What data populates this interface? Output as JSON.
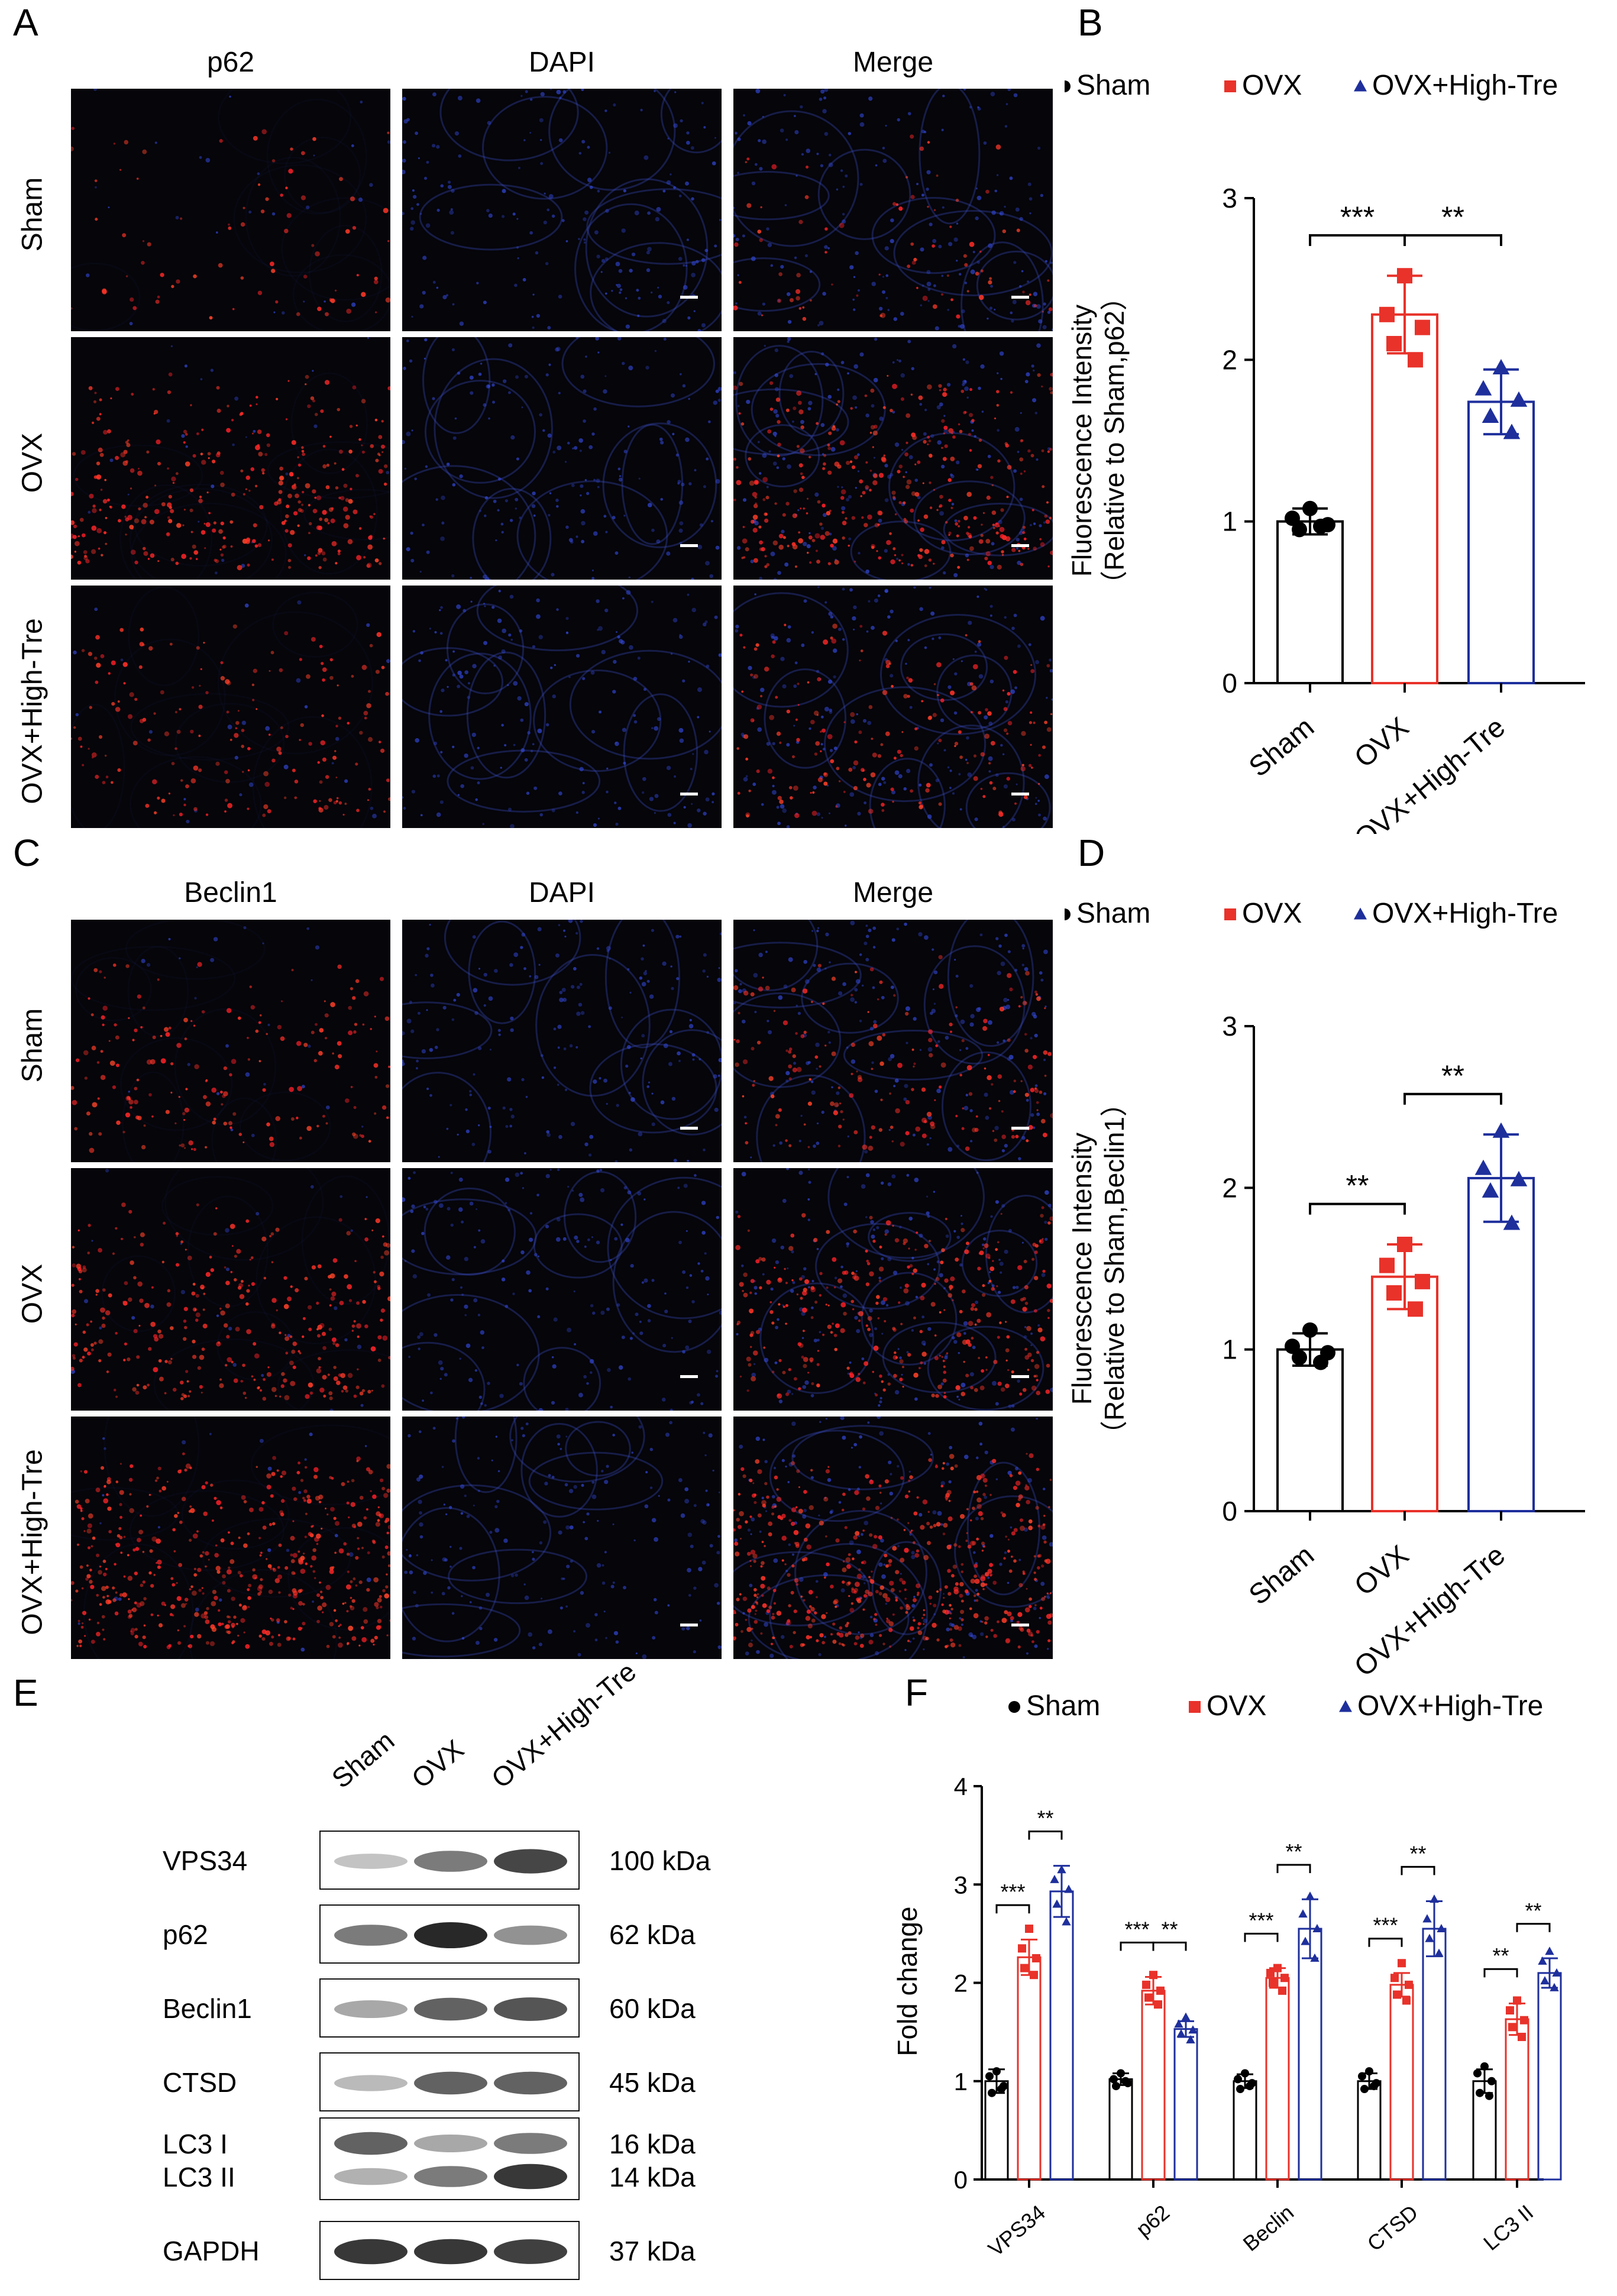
{
  "panel_letters": {
    "A": "A",
    "B": "B",
    "C": "C",
    "D": "D",
    "E": "E",
    "F": "F"
  },
  "if_rows": [
    "Sham",
    "OVX",
    "OVX+High-Tre"
  ],
  "panel_A": {
    "columns": [
      "p62",
      "DAPI",
      "Merge"
    ],
    "intensity": [
      0.15,
      0.65,
      0.35
    ]
  },
  "panel_C": {
    "columns": [
      "Beclin1",
      "DAPI",
      "Merge"
    ],
    "intensity": [
      0.35,
      0.6,
      0.95
    ]
  },
  "colors": {
    "sham": "#000000",
    "ovx": "#e8322a",
    "high": "#1e2f9c",
    "red_signal": "#ff2a2a",
    "blue_signal": "#2a3fd6"
  },
  "chart_data": [
    {
      "type": "bar",
      "panel": "B",
      "ylabel_line1": "Fluorescence Intensity",
      "ylabel_line2": "（Relative to Sham,p62）",
      "categories": [
        "Sham",
        "OVX",
        "OVX+High-Tre"
      ],
      "series": [
        {
          "name": "Sham",
          "value": 1.0,
          "sd": 0.08,
          "points": [
            1.08,
            1.02,
            0.98,
            0.95,
            0.97
          ]
        },
        {
          "name": "OVX",
          "value": 2.28,
          "sd": 0.24,
          "points": [
            2.52,
            2.28,
            2.2,
            2.1,
            2.0
          ]
        },
        {
          "name": "OVX+High-Tre",
          "value": 1.74,
          "sd": 0.2,
          "points": [
            1.95,
            1.82,
            1.75,
            1.65,
            1.55
          ]
        }
      ],
      "ylim": [
        0,
        3
      ],
      "yticks": [
        "0",
        "1",
        "2",
        "3"
      ],
      "legend": [
        "Sham",
        "OVX",
        "OVX+High-Tre"
      ],
      "significance": [
        {
          "from": 0,
          "to": 1,
          "label": "***"
        },
        {
          "from": 1,
          "to": 2,
          "label": "**"
        }
      ]
    },
    {
      "type": "bar",
      "panel": "D",
      "ylabel_line1": "Fluorescence Intensity",
      "ylabel_line2": "（Relative to Sham,Beclin1）",
      "categories": [
        "Sham",
        "OVX",
        "OVX+High-Tre"
      ],
      "series": [
        {
          "name": "Sham",
          "value": 1.0,
          "sd": 0.1,
          "points": [
            1.12,
            1.02,
            0.98,
            0.95,
            0.92
          ]
        },
        {
          "name": "OVX",
          "value": 1.45,
          "sd": 0.2,
          "points": [
            1.65,
            1.52,
            1.42,
            1.35,
            1.25
          ]
        },
        {
          "name": "OVX+High-Tre",
          "value": 2.06,
          "sd": 0.27,
          "points": [
            2.35,
            2.12,
            2.05,
            1.98,
            1.78
          ]
        }
      ],
      "ylim": [
        0,
        3
      ],
      "yticks": [
        "0",
        "1",
        "2",
        "3"
      ],
      "legend": [
        "Sham",
        "OVX",
        "OVX+High-Tre"
      ],
      "significance": [
        {
          "from": 0,
          "to": 1,
          "label": "**"
        },
        {
          "from": 1,
          "to": 2,
          "label": "**"
        }
      ]
    },
    {
      "type": "bar",
      "panel": "F",
      "ylabel": "Fold change",
      "categories": [
        "VPS34",
        "p62",
        "Beclin",
        "CTSD",
        "LC3 II"
      ],
      "series": [
        {
          "name": "Sham",
          "values": [
            1.0,
            1.02,
            1.0,
            1.0,
            1.0
          ],
          "sd": [
            0.12,
            0.06,
            0.07,
            0.08,
            0.12
          ],
          "points": [
            [
              1.1,
              1.05,
              0.95,
              0.88,
              0.92
            ],
            [
              1.08,
              1.02,
              0.98,
              0.95,
              1.0
            ],
            [
              1.08,
              1.02,
              0.98,
              0.92,
              0.95
            ],
            [
              1.1,
              1.05,
              0.98,
              0.92,
              0.95
            ],
            [
              1.15,
              1.08,
              1.0,
              0.88,
              0.85
            ]
          ]
        },
        {
          "name": "OVX",
          "values": [
            2.26,
            1.92,
            2.05,
            1.98,
            1.63
          ],
          "sd": [
            0.18,
            0.14,
            0.1,
            0.12,
            0.16
          ],
          "points": [
            [
              2.55,
              2.35,
              2.25,
              2.15,
              2.08
            ],
            [
              2.08,
              1.98,
              1.92,
              1.85,
              1.78
            ],
            [
              2.15,
              2.1,
              2.05,
              2.0,
              1.92
            ],
            [
              2.2,
              2.05,
              1.98,
              1.88,
              1.82
            ],
            [
              1.82,
              1.72,
              1.62,
              1.55,
              1.45
            ]
          ]
        },
        {
          "name": "OVX+High-Tre",
          "values": [
            2.93,
            1.53,
            2.55,
            2.55,
            2.1
          ],
          "sd": [
            0.26,
            0.08,
            0.3,
            0.28,
            0.15
          ],
          "points": [
            [
              3.15,
              3.05,
              2.95,
              2.8,
              2.62
            ],
            [
              1.65,
              1.58,
              1.52,
              1.48,
              1.42
            ],
            [
              2.88,
              2.7,
              2.55,
              2.42,
              2.25
            ],
            [
              2.85,
              2.65,
              2.55,
              2.45,
              2.3
            ],
            [
              2.32,
              2.22,
              2.1,
              2.02,
              1.95
            ]
          ]
        }
      ],
      "ylim": [
        0,
        4
      ],
      "yticks": [
        "0",
        "1",
        "2",
        "3",
        "4"
      ],
      "legend": [
        "Sham",
        "OVX",
        "OVX+High-Tre"
      ],
      "significance": [
        {
          "group": 0,
          "a": 0,
          "b": 1,
          "label": "***"
        },
        {
          "group": 0,
          "a": 1,
          "b": 2,
          "label": "**"
        },
        {
          "group": 1,
          "a": 0,
          "b": 1,
          "label": "***"
        },
        {
          "group": 1,
          "a": 1,
          "b": 2,
          "label": "**"
        },
        {
          "group": 2,
          "a": 0,
          "b": 1,
          "label": "***"
        },
        {
          "group": 2,
          "a": 1,
          "b": 2,
          "label": "**"
        },
        {
          "group": 3,
          "a": 0,
          "b": 1,
          "label": "***"
        },
        {
          "group": 3,
          "a": 1,
          "b": 2,
          "label": "**"
        },
        {
          "group": 4,
          "a": 0,
          "b": 1,
          "label": "**"
        },
        {
          "group": 4,
          "a": 1,
          "b": 2,
          "label": "**"
        }
      ]
    }
  ],
  "western_blot": {
    "lanes": [
      "Sham",
      "OVX",
      "OVX+High-Tre"
    ],
    "rows": [
      {
        "label": "VPS34",
        "kda": "100 kDa",
        "intensity": [
          0.35,
          0.7,
          0.9
        ]
      },
      {
        "label": "p62",
        "kda": "62 kDa",
        "intensity": [
          0.7,
          1.0,
          0.6
        ]
      },
      {
        "label": "Beclin1",
        "kda": "60 kDa",
        "intensity": [
          0.5,
          0.8,
          0.85
        ]
      },
      {
        "label": "CTSD",
        "kda": "45 kDa",
        "intensity": [
          0.4,
          0.8,
          0.8
        ]
      },
      {
        "label": "LC3 I",
        "label2": "LC3 II",
        "kda": "16 kDa",
        "kda2": "14 kDa",
        "intensity": [
          0.8,
          0.5,
          0.7
        ],
        "intensity2": [
          0.45,
          0.7,
          0.95
        ]
      },
      {
        "label": "GAPDH",
        "kda": "37 kDa",
        "intensity": [
          0.95,
          0.95,
          0.92
        ]
      }
    ]
  }
}
